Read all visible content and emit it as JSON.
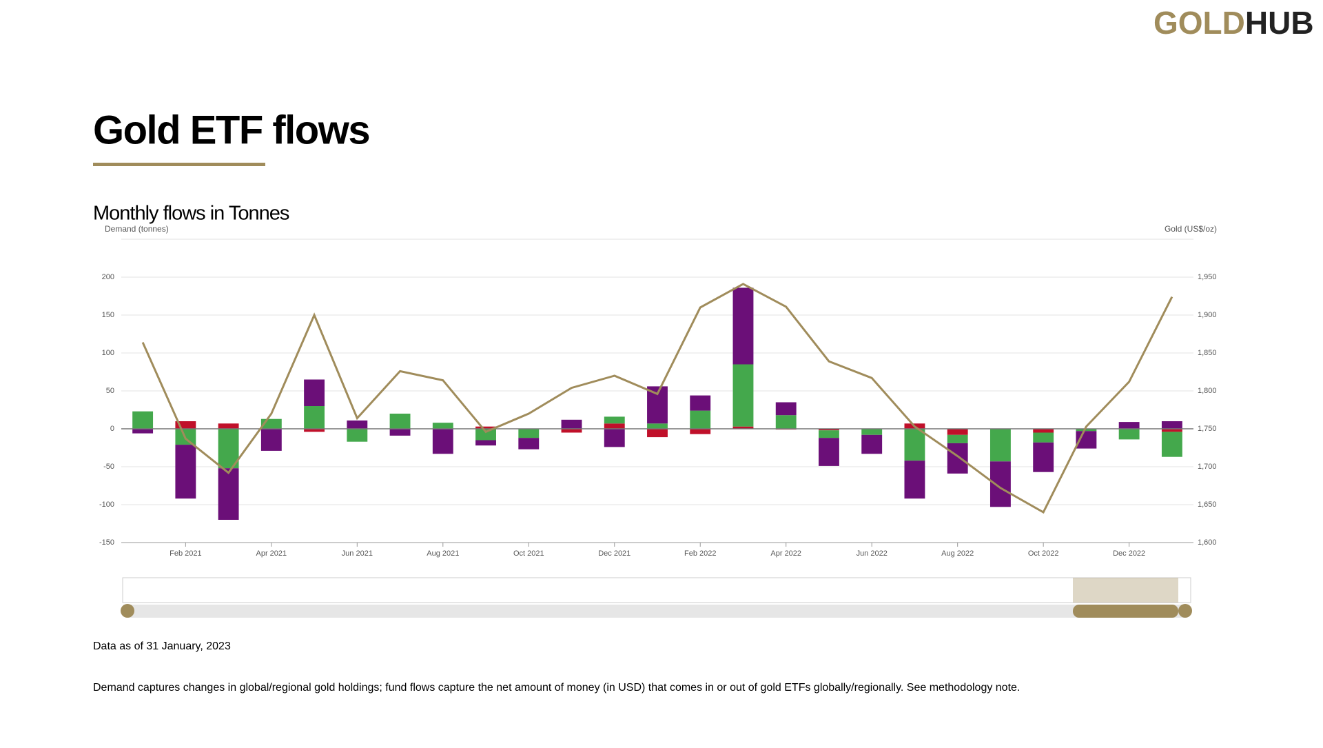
{
  "logo": {
    "left": "GOLD",
    "right": "HUB"
  },
  "page_title": "Gold ETF flows",
  "chart_data": {
    "type": "bar",
    "title": "Monthly flows in Tonnes",
    "ylabel": "Demand (tonnes)",
    "y2label": "Gold (US$/oz)",
    "categories": [
      null,
      "Feb 2021",
      null,
      "Apr 2021",
      null,
      "Jun 2021",
      null,
      "Aug 2021",
      null,
      "Oct 2021",
      null,
      "Dec 2021",
      null,
      "Feb 2022",
      null,
      "Apr 2022",
      null,
      "Jun 2022",
      null,
      "Aug 2022",
      null,
      "Oct 2022",
      null,
      "Dec 2022",
      null
    ],
    "series": [
      {
        "color": "#c0102a",
        "values": [
          0,
          10,
          7,
          0,
          -4,
          0,
          0,
          0,
          3,
          0,
          -5,
          7,
          -11,
          -7,
          3,
          -1,
          -2,
          0,
          7,
          -8,
          0,
          -5,
          0,
          0,
          -4
        ]
      },
      {
        "color": "#44a84c",
        "values": [
          23,
          -21,
          -52,
          13,
          30,
          -17,
          20,
          8,
          -15,
          -12,
          0,
          9,
          7,
          24,
          82,
          18,
          -10,
          -8,
          -42,
          -11,
          -43,
          -13,
          -3,
          -14,
          -33
        ]
      },
      {
        "color": "#6b0f78",
        "values": [
          -6,
          -71,
          -68,
          -29,
          35,
          11,
          -9,
          -33,
          -7,
          -15,
          12,
          -24,
          49,
          20,
          101,
          17,
          -37,
          -25,
          -50,
          -40,
          -60,
          -39,
          -23,
          9,
          10
        ]
      },
      {
        "type": "line",
        "axis": "y2",
        "color": "#a08c5b",
        "values": [
          1864,
          1737,
          1692,
          1770,
          1900,
          1764,
          1826,
          1814,
          1746,
          1770,
          1804,
          1820,
          1796,
          1910,
          1941,
          1911,
          1839,
          1817,
          1753,
          1714,
          1672,
          1640,
          1753,
          1812,
          1924
        ]
      }
    ],
    "ylim": [
      -150,
      250
    ],
    "yticks": [
      -150,
      -100,
      -50,
      0,
      50,
      100,
      150,
      200
    ],
    "y2lim": [
      1600,
      2000
    ],
    "y2ticks": [
      {
        "value": 1600,
        "label": "1,600"
      },
      {
        "value": 1650,
        "label": "1,650"
      },
      {
        "value": 1700,
        "label": "1,700"
      },
      {
        "value": 1750,
        "label": "1,750"
      },
      {
        "value": 1800,
        "label": "1,800"
      },
      {
        "value": 1850,
        "label": "1,850"
      },
      {
        "value": 1900,
        "label": "1,900"
      },
      {
        "value": 1950,
        "label": "1,950"
      }
    ],
    "grid": true
  },
  "note": "Data as of 31 January, 2023",
  "description": "Demand captures changes in global/regional gold holdings; fund flows capture the net amount of money (in USD) that comes in or out of gold ETFs globally/regionally. See methodology note."
}
